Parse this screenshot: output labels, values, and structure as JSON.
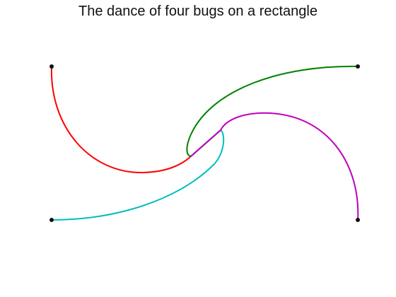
{
  "figure": {
    "title": "The dance of four bugs on a rectangle"
  },
  "colors": {
    "background": "#ffffff",
    "corner_marker": "#111111",
    "red_path": "#ff0000",
    "green_path": "#008000",
    "cyan_path": "#00bfbf",
    "magenta_path": "#bf00bf"
  }
}
